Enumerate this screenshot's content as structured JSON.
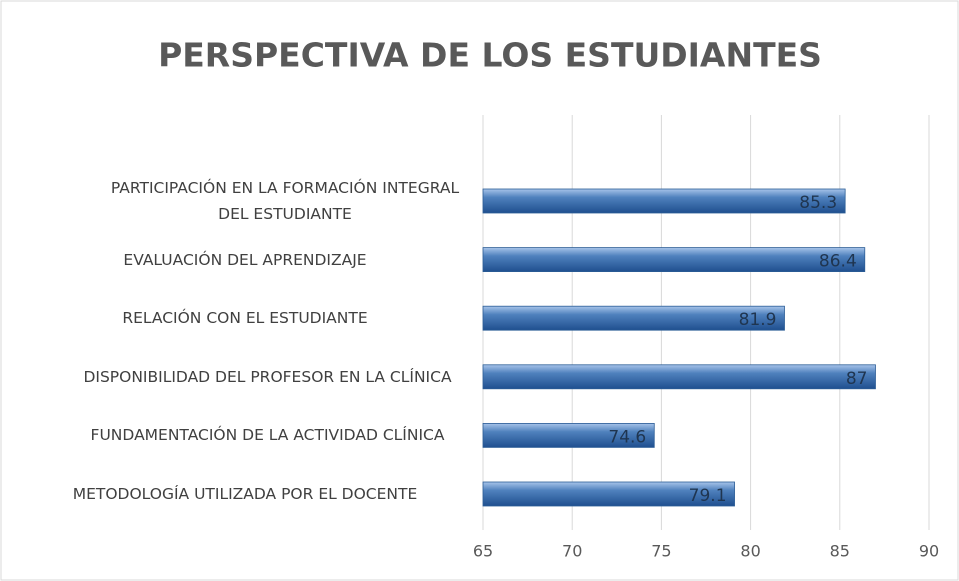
{
  "chart_data": {
    "type": "bar",
    "orientation": "horizontal",
    "title": "PERSPECTIVA DE LOS ESTUDIANTES",
    "categories": [
      "PARTICIPACIÓN EN LA FORMACIÓN INTEGRAL DEL ESTUDIANTE",
      "EVALUACIÓN DEL APRENDIZAJE",
      "RELACIÓN CON EL ESTUDIANTE",
      "DISPONIBILIDAD DEL PROFESOR EN LA CLÍNICA",
      "FUNDAMENTACIÓN DE LA ACTIVIDAD CLÍNICA",
      "METODOLOGÍA UTILIZADA POR EL DOCENTE"
    ],
    "values": [
      85.3,
      86.4,
      81.9,
      87,
      74.6,
      79.1
    ],
    "color": "#4f81bd",
    "xlim": [
      65,
      90
    ],
    "xticks": [
      65,
      70,
      75,
      80,
      85,
      90
    ],
    "grid": true
  }
}
